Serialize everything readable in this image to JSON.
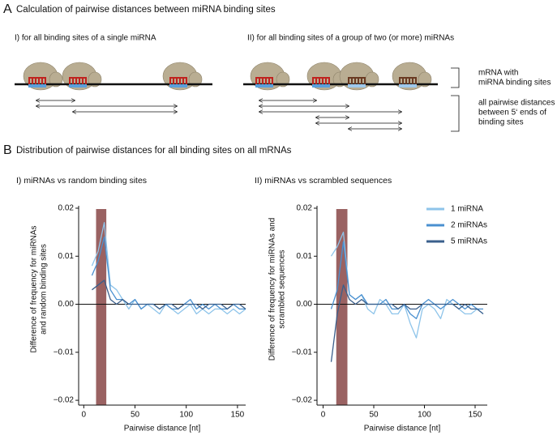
{
  "panel_a": {
    "letter": "A",
    "title": "Calculation of pairwise distances between miRNA binding sites",
    "left_label": "I) for all binding sites of a single miRNA",
    "right_label": "II) for all binding sites of a group of two (or more) miRNAs",
    "mrna_note": [
      "mRNA with",
      "miRNA binding sites"
    ],
    "distance_note": [
      "all pairwise distances",
      "between 5‘ ends of",
      "binding sites"
    ]
  },
  "panel_b": {
    "letter": "B",
    "title": "Distribution of pairwise distances for all binding sites on all mRNAs"
  },
  "chart_data": [
    {
      "type": "line",
      "subtitle": "I)   miRNAs vs random binding sites",
      "x_label": "Pairwise distance [nt]",
      "y_label": [
        "Difference of frequency for miRNAs",
        "and random binding sites"
      ],
      "x": [
        8,
        14,
        20,
        26,
        32,
        38,
        44,
        50,
        56,
        62,
        68,
        74,
        80,
        86,
        92,
        98,
        104,
        110,
        116,
        122,
        128,
        134,
        140,
        146,
        152,
        158
      ],
      "series": [
        {
          "color": "#8ec4ea",
          "values": [
            0.008,
            0.011,
            0.017,
            0.004,
            0.003,
            0.001,
            -0.001,
            0.001,
            -0.001,
            0.0,
            -0.001,
            -0.002,
            0.0,
            -0.001,
            -0.002,
            -0.001,
            0.0,
            -0.002,
            -0.001,
            -0.002,
            -0.001,
            -0.001,
            -0.002,
            -0.001,
            -0.002,
            -0.001
          ]
        },
        {
          "color": "#4a90d0",
          "values": [
            0.006,
            0.009,
            0.014,
            0.003,
            0.001,
            0.001,
            0.0,
            0.001,
            -0.001,
            0.0,
            0.0,
            -0.001,
            0.0,
            -0.001,
            -0.001,
            0.0,
            0.001,
            -0.001,
            0.0,
            -0.001,
            0.0,
            -0.001,
            -0.001,
            0.0,
            -0.001,
            -0.001
          ]
        },
        {
          "color": "#3a5f8c",
          "values": [
            0.003,
            0.004,
            0.005,
            0.001,
            0.0,
            0.001,
            0.0,
            0.0,
            0.0,
            0.0,
            0.0,
            -0.001,
            0.0,
            0.0,
            -0.001,
            0.0,
            0.0,
            0.0,
            -0.001,
            0.0,
            0.0,
            0.0,
            -0.001,
            0.0,
            0.0,
            -0.001
          ]
        }
      ],
      "highlight": [
        12,
        22
      ],
      "highlight_color": "#9a6262",
      "xlim": [
        -5,
        158
      ],
      "xticks": [
        0,
        50,
        100,
        150
      ],
      "ylim": [
        -0.021,
        0.0205
      ],
      "yticks": [
        0.02,
        0.01,
        {
          "value": 0,
          "label": "0.00"
        },
        {
          "value": -0.01,
          "label": "−0.01"
        },
        {
          "value": -0.02,
          "label": "−0.02"
        }
      ]
    },
    {
      "type": "line",
      "subtitle": "II)   miRNAs vs scrambled sequences",
      "x_label": "Pairwise distance [nt]",
      "y_label": [
        "Difference of frequency for miRNAs and",
        "scrambled sequences"
      ],
      "x": [
        8,
        14,
        20,
        26,
        32,
        38,
        44,
        50,
        56,
        62,
        68,
        74,
        80,
        86,
        92,
        98,
        104,
        110,
        116,
        122,
        128,
        134,
        140,
        146,
        152,
        158
      ],
      "series": [
        {
          "name": "1 miRNA",
          "color": "#8ec4ea",
          "values": [
            0.01,
            0.012,
            0.015,
            0.002,
            0.001,
            0.002,
            -0.001,
            -0.002,
            0.001,
            0.0,
            -0.002,
            -0.002,
            0.0,
            -0.004,
            -0.007,
            -0.001,
            0.0,
            -0.001,
            -0.003,
            0.001,
            0.0,
            -0.001,
            -0.002,
            -0.002,
            -0.001,
            -0.002
          ]
        },
        {
          "name": "2 miRNAs",
          "color": "#4a90d0",
          "values": [
            -0.001,
            0.003,
            0.013,
            0.002,
            0.001,
            0.002,
            0.0,
            0.0,
            0.0,
            0.001,
            -0.001,
            -0.001,
            0.0,
            -0.002,
            -0.003,
            0.0,
            0.001,
            0.0,
            -0.001,
            0.0,
            0.001,
            0.0,
            -0.001,
            0.0,
            -0.001,
            -0.001
          ]
        },
        {
          "name": "5 miRNAs",
          "color": "#3a5f8c",
          "values": [
            -0.012,
            -0.002,
            0.004,
            0.001,
            0.0,
            0.001,
            0.0,
            0.0,
            0.0,
            0.0,
            0.0,
            -0.001,
            0.0,
            -0.001,
            -0.001,
            0.0,
            0.0,
            0.0,
            0.0,
            0.0,
            0.0,
            -0.001,
            0.0,
            -0.001,
            -0.001,
            -0.002
          ]
        }
      ],
      "highlight": [
        13,
        24
      ],
      "highlight_color": "#9a6262",
      "legend": "top-right",
      "xlim": [
        -6,
        162
      ],
      "xticks": [
        0,
        50,
        100,
        150
      ],
      "ylim": [
        -0.021,
        0.0205
      ],
      "yticks": [
        0.02,
        0.01,
        {
          "value": 0,
          "label": "0.00"
        },
        {
          "value": -0.01,
          "label": "−0.01"
        },
        {
          "value": -0.02,
          "label": "−0.02"
        }
      ]
    }
  ]
}
